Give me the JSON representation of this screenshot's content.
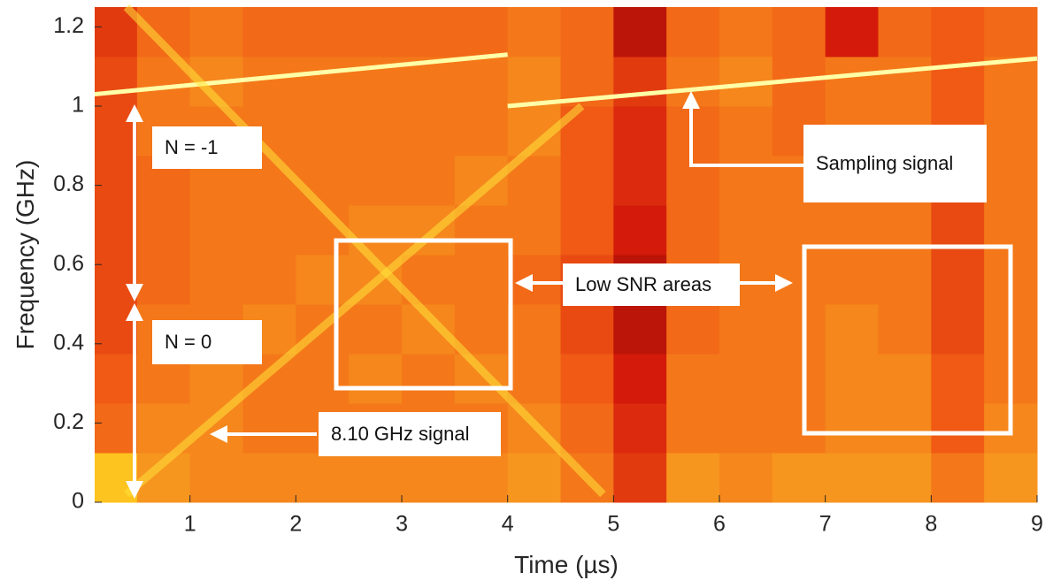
{
  "chart_data": {
    "type": "spectrogram",
    "x_label": "Time (µs)",
    "y_label": "Frequency (GHz)",
    "xlim": [
      0.1,
      9
    ],
    "ylim": [
      0,
      1.25
    ],
    "xticks": [
      1,
      2,
      3,
      4,
      5,
      6,
      7,
      8,
      9
    ],
    "yticks": [
      0,
      0.2,
      0.4,
      0.6,
      0.8,
      1,
      1.2
    ],
    "xbins": [
      0.1,
      0.5,
      1,
      1.5,
      2,
      2.5,
      3,
      3.5,
      4,
      4.5,
      5,
      5.5,
      6,
      6.5,
      7,
      7.5,
      8,
      8.5,
      9
    ],
    "ybins": [
      0,
      0.125,
      0.25,
      0.375,
      0.5,
      0.625,
      0.75,
      0.875,
      1,
      1.125,
      1.25
    ],
    "clim": [
      0,
      1
    ],
    "colormap": [
      "#6e0000",
      "#d41a0a",
      "#f05a14",
      "#f7961e",
      "#ffd21e",
      "#ffff9a"
    ],
    "z": [
      [
        0.75,
        0.6,
        0.55,
        0.55,
        0.55,
        0.55,
        0.55,
        0.55,
        0.6,
        0.5,
        0.3,
        0.6,
        0.55,
        0.6,
        0.6,
        0.6,
        0.5,
        0.6
      ],
      [
        0.45,
        0.55,
        0.55,
        0.5,
        0.5,
        0.5,
        0.5,
        0.5,
        0.55,
        0.45,
        0.25,
        0.5,
        0.5,
        0.5,
        0.55,
        0.55,
        0.4,
        0.55
      ],
      [
        0.4,
        0.5,
        0.55,
        0.5,
        0.5,
        0.55,
        0.5,
        0.55,
        0.5,
        0.4,
        0.2,
        0.5,
        0.5,
        0.5,
        0.55,
        0.55,
        0.4,
        0.5
      ],
      [
        0.35,
        0.5,
        0.5,
        0.55,
        0.5,
        0.5,
        0.55,
        0.5,
        0.5,
        0.35,
        0.15,
        0.45,
        0.5,
        0.5,
        0.55,
        0.5,
        0.35,
        0.5
      ],
      [
        0.35,
        0.45,
        0.5,
        0.5,
        0.55,
        0.55,
        0.5,
        0.5,
        0.45,
        0.35,
        0.15,
        0.45,
        0.5,
        0.5,
        0.5,
        0.5,
        0.35,
        0.5
      ],
      [
        0.35,
        0.45,
        0.5,
        0.5,
        0.5,
        0.55,
        0.55,
        0.5,
        0.5,
        0.4,
        0.2,
        0.45,
        0.5,
        0.5,
        0.5,
        0.5,
        0.35,
        0.5
      ],
      [
        0.35,
        0.45,
        0.5,
        0.5,
        0.5,
        0.5,
        0.5,
        0.55,
        0.5,
        0.4,
        0.25,
        0.45,
        0.5,
        0.5,
        0.5,
        0.5,
        0.35,
        0.5
      ],
      [
        0.35,
        0.5,
        0.5,
        0.5,
        0.5,
        0.5,
        0.5,
        0.5,
        0.55,
        0.4,
        0.25,
        0.45,
        0.5,
        0.45,
        0.5,
        0.5,
        0.4,
        0.5
      ],
      [
        0.35,
        0.5,
        0.55,
        0.5,
        0.5,
        0.5,
        0.5,
        0.5,
        0.55,
        0.45,
        0.3,
        0.5,
        0.55,
        0.45,
        0.5,
        0.5,
        0.4,
        0.5
      ],
      [
        0.3,
        0.45,
        0.5,
        0.45,
        0.45,
        0.45,
        0.45,
        0.45,
        0.5,
        0.45,
        0.15,
        0.45,
        0.5,
        0.45,
        0.2,
        0.45,
        0.4,
        0.45
      ]
    ],
    "lines": [
      {
        "x": [
          0.1,
          4
        ],
        "y": [
          1.03,
          1.13
        ],
        "color": "#ffffa8"
      },
      {
        "x": [
          4,
          9
        ],
        "y": [
          1.0,
          1.12
        ],
        "color": "#ffffa8"
      },
      {
        "x": [
          0.4,
          4.7
        ],
        "y": [
          0.02,
          1.0
        ],
        "color": "#ffe23a"
      },
      {
        "x": [
          0.4,
          4.9
        ],
        "y": [
          1.25,
          0.02
        ],
        "color": "#ffe23a"
      }
    ],
    "annotations": [
      "N = -1",
      "N = 0",
      "8.10 GHz signal",
      "Sampling signal",
      "Low SNR areas"
    ]
  }
}
